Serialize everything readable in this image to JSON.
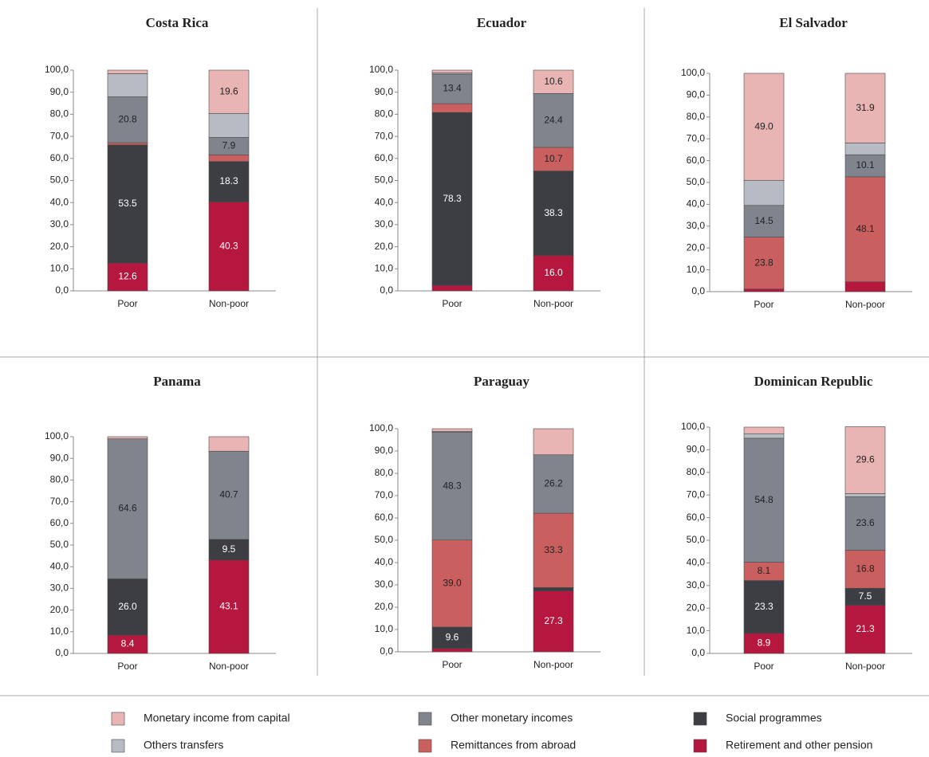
{
  "chart_data": [
    {
      "type": "bar",
      "stacked": true,
      "title": "Costa Rica",
      "categories": [
        "Poor",
        "Non-poor"
      ],
      "ylim": [
        0,
        100
      ],
      "yticks": [
        {
          "value": 0,
          "label": "0,0"
        },
        {
          "value": 10,
          "label": "10,0"
        },
        {
          "value": 20,
          "label": "20,0"
        },
        {
          "value": 30,
          "label": "30,0"
        },
        {
          "value": 40,
          "label": "40,0"
        },
        {
          "value": 50,
          "label": "50,0"
        },
        {
          "value": 60,
          "label": "60,0"
        },
        {
          "value": 70,
          "label": "70,0"
        },
        {
          "value": 80,
          "label": "80,0"
        },
        {
          "value": 90,
          "label": "90,0"
        },
        {
          "value": 100,
          "label": "100,0"
        }
      ],
      "series": [
        {
          "name": "Retirement and other pension",
          "color": "#b5173f",
          "values": [
            12.6,
            40.3
          ],
          "value_labels": [
            "12.6",
            "40.3"
          ]
        },
        {
          "name": "Social programmes",
          "color": "#3d3e43",
          "values": [
            53.5,
            18.3
          ],
          "value_labels": [
            "53.5",
            "18.3"
          ]
        },
        {
          "name": "Remittances from abroad",
          "color": "#c9605f",
          "values": [
            1.0,
            3.0
          ],
          "value_labels": [
            null,
            null
          ]
        },
        {
          "name": "Other monetary incomes",
          "color": "#80848d",
          "values": [
            20.8,
            7.9
          ],
          "value_labels": [
            "20.8",
            "7.9"
          ]
        },
        {
          "name": "Others transfers",
          "color": "#b7bbc3",
          "values": [
            10.5,
            10.9
          ],
          "value_labels": [
            null,
            null
          ]
        },
        {
          "name": "Monetary income from capital",
          "color": "#e8b4b4",
          "values": [
            1.6,
            19.6
          ],
          "value_labels": [
            null,
            "19.6"
          ]
        }
      ]
    },
    {
      "type": "bar",
      "stacked": true,
      "title": "Ecuador",
      "categories": [
        "Poor",
        "Non-poor"
      ],
      "ylim": [
        0,
        100
      ],
      "yticks": [
        {
          "value": 0,
          "label": "0,0"
        },
        {
          "value": 10,
          "label": "10,0"
        },
        {
          "value": 20,
          "label": "20,0"
        },
        {
          "value": 30,
          "label": "30,0"
        },
        {
          "value": 40,
          "label": "40,0"
        },
        {
          "value": 50,
          "label": "50,0"
        },
        {
          "value": 60,
          "label": "60,0"
        },
        {
          "value": 70,
          "label": "70,0"
        },
        {
          "value": 80,
          "label": "80,0"
        },
        {
          "value": 90,
          "label": "90,0"
        },
        {
          "value": 100,
          "label": "100,0"
        }
      ],
      "series": [
        {
          "name": "Retirement and other pension",
          "color": "#b5173f",
          "values": [
            2.5,
            16.0
          ],
          "value_labels": [
            null,
            "16.0"
          ]
        },
        {
          "name": "Social programmes",
          "color": "#3d3e43",
          "values": [
            78.3,
            38.3
          ],
          "value_labels": [
            "78.3",
            "38.3"
          ]
        },
        {
          "name": "Remittances from abroad",
          "color": "#c9605f",
          "values": [
            4.0,
            10.7
          ],
          "value_labels": [
            null,
            "10.7"
          ]
        },
        {
          "name": "Other monetary incomes",
          "color": "#80848d",
          "values": [
            13.4,
            24.4
          ],
          "value_labels": [
            "13.4",
            "24.4"
          ]
        },
        {
          "name": "Others transfers",
          "color": "#b7bbc3",
          "values": [
            0.5,
            0
          ],
          "value_labels": [
            null,
            null
          ]
        },
        {
          "name": "Monetary income from capital",
          "color": "#e8b4b4",
          "values": [
            1.3,
            10.6
          ],
          "value_labels": [
            null,
            "10.6"
          ]
        }
      ]
    },
    {
      "type": "bar",
      "stacked": true,
      "title": "El Salvador",
      "categories": [
        "Poor",
        "Non-poor"
      ],
      "ylim": [
        0,
        100
      ],
      "yticks": [
        {
          "value": 0,
          "label": "0,0"
        },
        {
          "value": 10,
          "label": "10,0"
        },
        {
          "value": 20,
          "label": "20,0"
        },
        {
          "value": 30,
          "label": "30,0"
        },
        {
          "value": 40,
          "label": "40,0"
        },
        {
          "value": 50,
          "label": "50,0"
        },
        {
          "value": 60,
          "label": "60,0"
        },
        {
          "value": 70,
          "label": "70,0"
        },
        {
          "value": 80,
          "label": "80,0"
        },
        {
          "value": 90,
          "label": "90,0"
        },
        {
          "value": 100,
          "label": "100,0"
        }
      ],
      "series": [
        {
          "name": "Retirement and other pension",
          "color": "#b5173f",
          "values": [
            1.2,
            4.5
          ],
          "value_labels": [
            null,
            null
          ]
        },
        {
          "name": "Social programmes",
          "color": "#3d3e43",
          "values": [
            0,
            0
          ],
          "value_labels": [
            null,
            null
          ]
        },
        {
          "name": "Remittances from abroad",
          "color": "#c9605f",
          "values": [
            23.8,
            48.1
          ],
          "value_labels": [
            "23.8",
            "48.1"
          ]
        },
        {
          "name": "Other monetary incomes",
          "color": "#80848d",
          "values": [
            14.5,
            10.1
          ],
          "value_labels": [
            "14.5",
            "10.1"
          ]
        },
        {
          "name": "Others transfers",
          "color": "#b7bbc3",
          "values": [
            11.5,
            5.4
          ],
          "value_labels": [
            null,
            null
          ]
        },
        {
          "name": "Monetary income from capital",
          "color": "#e8b4b4",
          "values": [
            49.0,
            31.9
          ],
          "value_labels": [
            "49.0",
            "31.9"
          ]
        }
      ]
    },
    {
      "type": "bar",
      "stacked": true,
      "title": "Panama",
      "categories": [
        "Poor",
        "Non-poor"
      ],
      "ylim": [
        0,
        100
      ],
      "yticks": [
        {
          "value": 0,
          "label": "0,0"
        },
        {
          "value": 10,
          "label": "10,0"
        },
        {
          "value": 20,
          "label": "20,0"
        },
        {
          "value": 30,
          "label": "30,0"
        },
        {
          "value": 40,
          "label": "40,0"
        },
        {
          "value": 50,
          "label": "50,0"
        },
        {
          "value": 60,
          "label": "60,0"
        },
        {
          "value": 70,
          "label": "70,0"
        },
        {
          "value": 80,
          "label": "80,0"
        },
        {
          "value": 90,
          "label": "90,0"
        },
        {
          "value": 100,
          "label": "100,0"
        }
      ],
      "series": [
        {
          "name": "Retirement and other pension",
          "color": "#b5173f",
          "values": [
            8.4,
            43.1
          ],
          "value_labels": [
            "8.4",
            "43.1"
          ]
        },
        {
          "name": "Social programmes",
          "color": "#3d3e43",
          "values": [
            26.0,
            9.5
          ],
          "value_labels": [
            "26.0",
            "9.5"
          ]
        },
        {
          "name": "Remittances from abroad",
          "color": "#c9605f",
          "values": [
            0,
            0
          ],
          "value_labels": [
            null,
            null
          ]
        },
        {
          "name": "Other monetary incomes",
          "color": "#80848d",
          "values": [
            64.6,
            40.7
          ],
          "value_labels": [
            "64.6",
            "40.7"
          ]
        },
        {
          "name": "Others transfers",
          "color": "#b7bbc3",
          "values": [
            0,
            0
          ],
          "value_labels": [
            null,
            null
          ]
        },
        {
          "name": "Monetary income from capital",
          "color": "#e8b4b4",
          "values": [
            1.0,
            6.7
          ],
          "value_labels": [
            null,
            null
          ]
        }
      ]
    },
    {
      "type": "bar",
      "stacked": true,
      "title": "Paraguay",
      "categories": [
        "Poor",
        "Non-poor"
      ],
      "ylim": [
        0,
        100
      ],
      "yticks": [
        {
          "value": 0,
          "label": "0,0"
        },
        {
          "value": 10,
          "label": "10,0"
        },
        {
          "value": 20,
          "label": "20,0"
        },
        {
          "value": 30,
          "label": "30,0"
        },
        {
          "value": 40,
          "label": "40,0"
        },
        {
          "value": 50,
          "label": "50,0"
        },
        {
          "value": 60,
          "label": "60,0"
        },
        {
          "value": 70,
          "label": "70,0"
        },
        {
          "value": 80,
          "label": "80,0"
        },
        {
          "value": 90,
          "label": "90,0"
        },
        {
          "value": 100,
          "label": "100,0"
        }
      ],
      "series": [
        {
          "name": "Retirement and other pension",
          "color": "#b5173f",
          "values": [
            1.5,
            27.3
          ],
          "value_labels": [
            null,
            "27.3"
          ]
        },
        {
          "name": "Social programmes",
          "color": "#3d3e43",
          "values": [
            9.6,
            1.5
          ],
          "value_labels": [
            "9.6",
            null
          ]
        },
        {
          "name": "Remittances from abroad",
          "color": "#c9605f",
          "values": [
            39.0,
            33.3
          ],
          "value_labels": [
            "39.0",
            "33.3"
          ]
        },
        {
          "name": "Other monetary incomes",
          "color": "#80848d",
          "values": [
            48.3,
            26.2
          ],
          "value_labels": [
            "48.3",
            "26.2"
          ]
        },
        {
          "name": "Others transfers",
          "color": "#b7bbc3",
          "values": [
            0.4,
            0
          ],
          "value_labels": [
            null,
            null
          ]
        },
        {
          "name": "Monetary income from capital",
          "color": "#e8b4b4",
          "values": [
            1.2,
            11.7
          ],
          "value_labels": [
            null,
            null
          ]
        }
      ]
    },
    {
      "type": "bar",
      "stacked": true,
      "title": "Dominican Republic",
      "categories": [
        "Poor",
        "Non-poor"
      ],
      "ylim": [
        0,
        100
      ],
      "yticks": [
        {
          "value": 0,
          "label": "0,0"
        },
        {
          "value": 10,
          "label": "10,0"
        },
        {
          "value": 20,
          "label": "20,0"
        },
        {
          "value": 30,
          "label": "30,0"
        },
        {
          "value": 40,
          "label": "40,0"
        },
        {
          "value": 50,
          "label": "50,0"
        },
        {
          "value": 60,
          "label": "60,0"
        },
        {
          "value": 70,
          "label": "70,0"
        },
        {
          "value": 80,
          "label": "80,0"
        },
        {
          "value": 90,
          "label": "90,0"
        },
        {
          "value": 100,
          "label": "100,0"
        }
      ],
      "series": [
        {
          "name": "Retirement and other pension",
          "color": "#b5173f",
          "values": [
            8.9,
            21.3
          ],
          "value_labels": [
            "8.9",
            "21.3"
          ]
        },
        {
          "name": "Social programmes",
          "color": "#3d3e43",
          "values": [
            23.3,
            7.5
          ],
          "value_labels": [
            "23.3",
            "7.5"
          ]
        },
        {
          "name": "Remittances from abroad",
          "color": "#c9605f",
          "values": [
            8.1,
            16.8
          ],
          "value_labels": [
            "8.1",
            "16.8"
          ]
        },
        {
          "name": "Other monetary incomes",
          "color": "#80848d",
          "values": [
            54.8,
            23.6
          ],
          "value_labels": [
            "54.8",
            "23.6"
          ]
        },
        {
          "name": "Others transfers",
          "color": "#b7bbc3",
          "values": [
            2.0,
            1.4
          ],
          "value_labels": [
            null,
            null
          ]
        },
        {
          "name": "Monetary income from capital",
          "color": "#e8b4b4",
          "values": [
            2.9,
            29.6
          ],
          "value_labels": [
            null,
            "29.6"
          ]
        }
      ]
    }
  ]
}
